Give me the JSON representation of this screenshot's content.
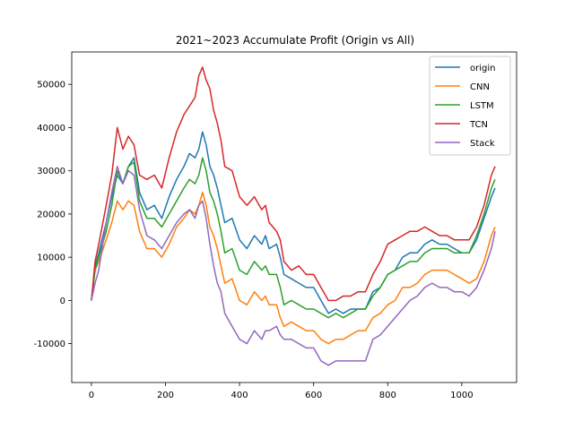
{
  "chart_data": {
    "type": "line",
    "title": "2021~2023 Accumulate Profit (Origin vs All)",
    "xlabel": "",
    "ylabel": "",
    "xlim": [
      -53,
      1148
    ],
    "ylim": [
      -19000,
      57500
    ],
    "xticks": [
      0,
      200,
      400,
      600,
      800,
      1000
    ],
    "yticks": [
      -10000,
      0,
      10000,
      20000,
      30000,
      40000,
      50000
    ],
    "grid": false,
    "legend_position": "top-right",
    "series": [
      {
        "name": "origin",
        "color": "#1f77b4",
        "x": [
          0,
          10,
          20,
          40,
          55,
          70,
          85,
          100,
          115,
          130,
          150,
          170,
          190,
          210,
          230,
          250,
          265,
          280,
          290,
          300,
          310,
          320,
          330,
          340,
          350,
          360,
          380,
          400,
          420,
          440,
          460,
          470,
          480,
          500,
          510,
          520,
          540,
          560,
          580,
          600,
          620,
          640,
          660,
          680,
          700,
          720,
          740,
          760,
          780,
          800,
          820,
          840,
          860,
          880,
          900,
          920,
          940,
          960,
          980,
          1000,
          1020,
          1040,
          1060,
          1080,
          1090
        ],
        "y": [
          0,
          8000,
          11000,
          18000,
          24000,
          29000,
          27000,
          31000,
          33000,
          25000,
          21000,
          22000,
          19000,
          24000,
          28000,
          31000,
          34000,
          33000,
          35000,
          39000,
          36000,
          31000,
          29000,
          26000,
          22000,
          18000,
          19000,
          14000,
          12000,
          15000,
          13000,
          15000,
          12000,
          13000,
          10000,
          6000,
          5000,
          4000,
          3000,
          3000,
          0,
          -3000,
          -2000,
          -3000,
          -2000,
          -2000,
          -2000,
          2000,
          3000,
          6000,
          7000,
          10000,
          11000,
          11000,
          13000,
          14000,
          13000,
          13000,
          12000,
          11000,
          11000,
          14000,
          19000,
          24000,
          26000
        ]
      },
      {
        "name": "CNN",
        "color": "#ff7f0e",
        "x": [
          0,
          10,
          20,
          40,
          55,
          70,
          85,
          100,
          115,
          130,
          150,
          170,
          190,
          210,
          230,
          250,
          265,
          280,
          290,
          300,
          310,
          320,
          330,
          340,
          350,
          360,
          380,
          400,
          420,
          440,
          460,
          470,
          480,
          500,
          510,
          520,
          540,
          560,
          580,
          600,
          620,
          640,
          660,
          680,
          700,
          720,
          740,
          760,
          780,
          800,
          820,
          840,
          860,
          880,
          900,
          920,
          940,
          960,
          980,
          1000,
          1020,
          1040,
          1060,
          1080,
          1090
        ],
        "y": [
          0,
          7000,
          9000,
          14000,
          18000,
          23000,
          21000,
          23000,
          22000,
          16000,
          12000,
          12000,
          10000,
          13000,
          17000,
          19000,
          21000,
          20000,
          22000,
          25000,
          22000,
          17000,
          15000,
          12000,
          8000,
          4000,
          5000,
          0,
          -1000,
          2000,
          0,
          1000,
          -1000,
          -1000,
          -4000,
          -6000,
          -5000,
          -6000,
          -7000,
          -7000,
          -9000,
          -10000,
          -9000,
          -9000,
          -8000,
          -7000,
          -7000,
          -4000,
          -3000,
          -1000,
          0,
          3000,
          3000,
          4000,
          6000,
          7000,
          7000,
          7000,
          6000,
          5000,
          4000,
          5000,
          9000,
          15000,
          17000
        ]
      },
      {
        "name": "LSTM",
        "color": "#2ca02c",
        "x": [
          0,
          10,
          20,
          40,
          55,
          70,
          85,
          100,
          115,
          130,
          150,
          170,
          190,
          210,
          230,
          250,
          265,
          280,
          290,
          300,
          310,
          320,
          330,
          340,
          350,
          360,
          380,
          400,
          420,
          440,
          460,
          470,
          480,
          500,
          510,
          520,
          540,
          560,
          580,
          600,
          620,
          640,
          660,
          680,
          700,
          720,
          740,
          760,
          780,
          800,
          820,
          840,
          860,
          880,
          900,
          920,
          940,
          960,
          980,
          1000,
          1020,
          1040,
          1060,
          1080,
          1090
        ],
        "y": [
          0,
          7000,
          10000,
          16000,
          22000,
          30000,
          27000,
          31000,
          32000,
          23000,
          19000,
          19000,
          17000,
          20000,
          23000,
          26000,
          28000,
          27000,
          29000,
          33000,
          30000,
          25000,
          23000,
          20000,
          16000,
          11000,
          12000,
          7000,
          6000,
          9000,
          7000,
          8000,
          6000,
          6000,
          3000,
          -1000,
          0,
          -1000,
          -2000,
          -2000,
          -3000,
          -4000,
          -3000,
          -4000,
          -3000,
          -2000,
          -2000,
          1000,
          3000,
          6000,
          7000,
          8000,
          9000,
          9000,
          11000,
          12000,
          12000,
          12000,
          11000,
          11000,
          11000,
          15000,
          20000,
          26000,
          28000
        ]
      },
      {
        "name": "TCN",
        "color": "#d62728",
        "x": [
          0,
          10,
          20,
          40,
          55,
          70,
          85,
          100,
          115,
          130,
          150,
          170,
          190,
          210,
          230,
          250,
          265,
          280,
          290,
          300,
          310,
          320,
          330,
          340,
          350,
          360,
          380,
          400,
          420,
          440,
          460,
          470,
          480,
          500,
          510,
          520,
          540,
          560,
          580,
          600,
          620,
          640,
          660,
          680,
          700,
          720,
          740,
          760,
          780,
          800,
          820,
          840,
          860,
          880,
          900,
          920,
          940,
          960,
          980,
          1000,
          1020,
          1040,
          1060,
          1080,
          1090
        ],
        "y": [
          0,
          9000,
          13000,
          22000,
          29000,
          40000,
          35000,
          38000,
          36000,
          29000,
          28000,
          29000,
          26000,
          33000,
          39000,
          43000,
          45000,
          47000,
          52000,
          54000,
          51000,
          49000,
          44000,
          41000,
          37000,
          31000,
          30000,
          24000,
          22000,
          24000,
          21000,
          22000,
          18000,
          16000,
          14000,
          9000,
          7000,
          8000,
          6000,
          6000,
          3000,
          0,
          0,
          1000,
          1000,
          2000,
          2000,
          6000,
          9000,
          13000,
          14000,
          15000,
          16000,
          16000,
          17000,
          16000,
          15000,
          15000,
          14000,
          14000,
          14000,
          17000,
          22000,
          29000,
          31000
        ]
      },
      {
        "name": "Stack",
        "color": "#9467bd",
        "x": [
          0,
          10,
          20,
          40,
          55,
          70,
          85,
          100,
          115,
          130,
          150,
          170,
          190,
          210,
          230,
          250,
          265,
          280,
          290,
          300,
          310,
          320,
          330,
          340,
          350,
          360,
          380,
          400,
          420,
          440,
          460,
          470,
          480,
          500,
          510,
          520,
          540,
          560,
          580,
          600,
          620,
          640,
          660,
          680,
          700,
          720,
          740,
          760,
          780,
          800,
          820,
          840,
          860,
          880,
          900,
          920,
          940,
          960,
          980,
          1000,
          1020,
          1040,
          1060,
          1080,
          1090
        ],
        "y": [
          0,
          4000,
          7000,
          18000,
          25000,
          31000,
          27000,
          30000,
          29000,
          21000,
          15000,
          14000,
          12000,
          15000,
          18000,
          20000,
          21000,
          19000,
          22000,
          23000,
          19000,
          13000,
          8000,
          4000,
          2000,
          -3000,
          -6000,
          -9000,
          -10000,
          -7000,
          -9000,
          -7000,
          -7000,
          -6000,
          -8000,
          -9000,
          -9000,
          -10000,
          -11000,
          -11000,
          -14000,
          -15000,
          -14000,
          -14000,
          -14000,
          -14000,
          -14000,
          -9000,
          -8000,
          -6000,
          -4000,
          -2000,
          0,
          1000,
          3000,
          4000,
          3000,
          3000,
          2000,
          2000,
          1000,
          3000,
          7000,
          12000,
          16000
        ]
      }
    ]
  }
}
